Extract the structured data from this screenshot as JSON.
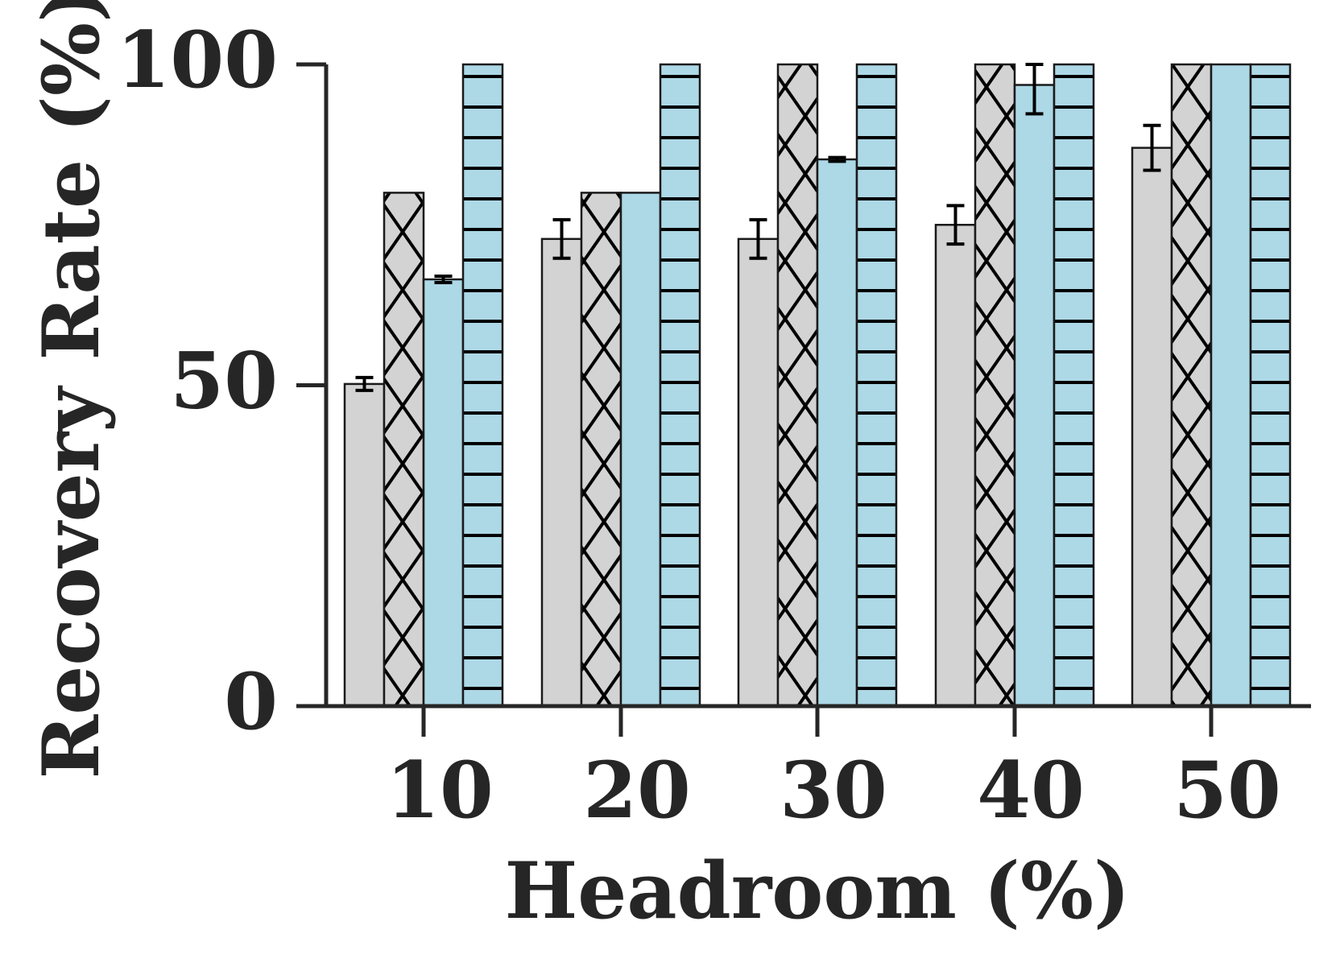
{
  "chart_data": {
    "type": "bar",
    "title": "",
    "xlabel": "Headroom (%)",
    "ylabel": "Recovery Rate (%)",
    "categories": [
      "10",
      "20",
      "30",
      "40",
      "50"
    ],
    "yticks": [
      "0",
      "50",
      "100"
    ],
    "ylim": [
      0,
      100
    ],
    "grid": false,
    "legend": "none",
    "series": [
      {
        "fill": "#d3d3d3",
        "hatch": "none",
        "values": [
          50.2,
          72.8,
          72.8,
          75.0,
          87.0
        ],
        "errors": [
          1.0,
          3.0,
          3.0,
          3.0,
          3.5
        ]
      },
      {
        "fill": "#d3d3d3",
        "hatch": "cross",
        "values": [
          80.0,
          80.0,
          100,
          100,
          100
        ],
        "errors": [
          0,
          0,
          0,
          0,
          0
        ]
      },
      {
        "fill": "#add8e6",
        "hatch": "none",
        "values": [
          66.5,
          80.0,
          85.2,
          96.8,
          100
        ],
        "errors": [
          0.5,
          0,
          0.3,
          4.5,
          0
        ]
      },
      {
        "fill": "#add8e6",
        "hatch": "hline",
        "values": [
          100,
          100,
          100,
          100,
          100
        ],
        "errors": [
          0,
          0,
          0,
          0,
          0
        ]
      }
    ]
  }
}
